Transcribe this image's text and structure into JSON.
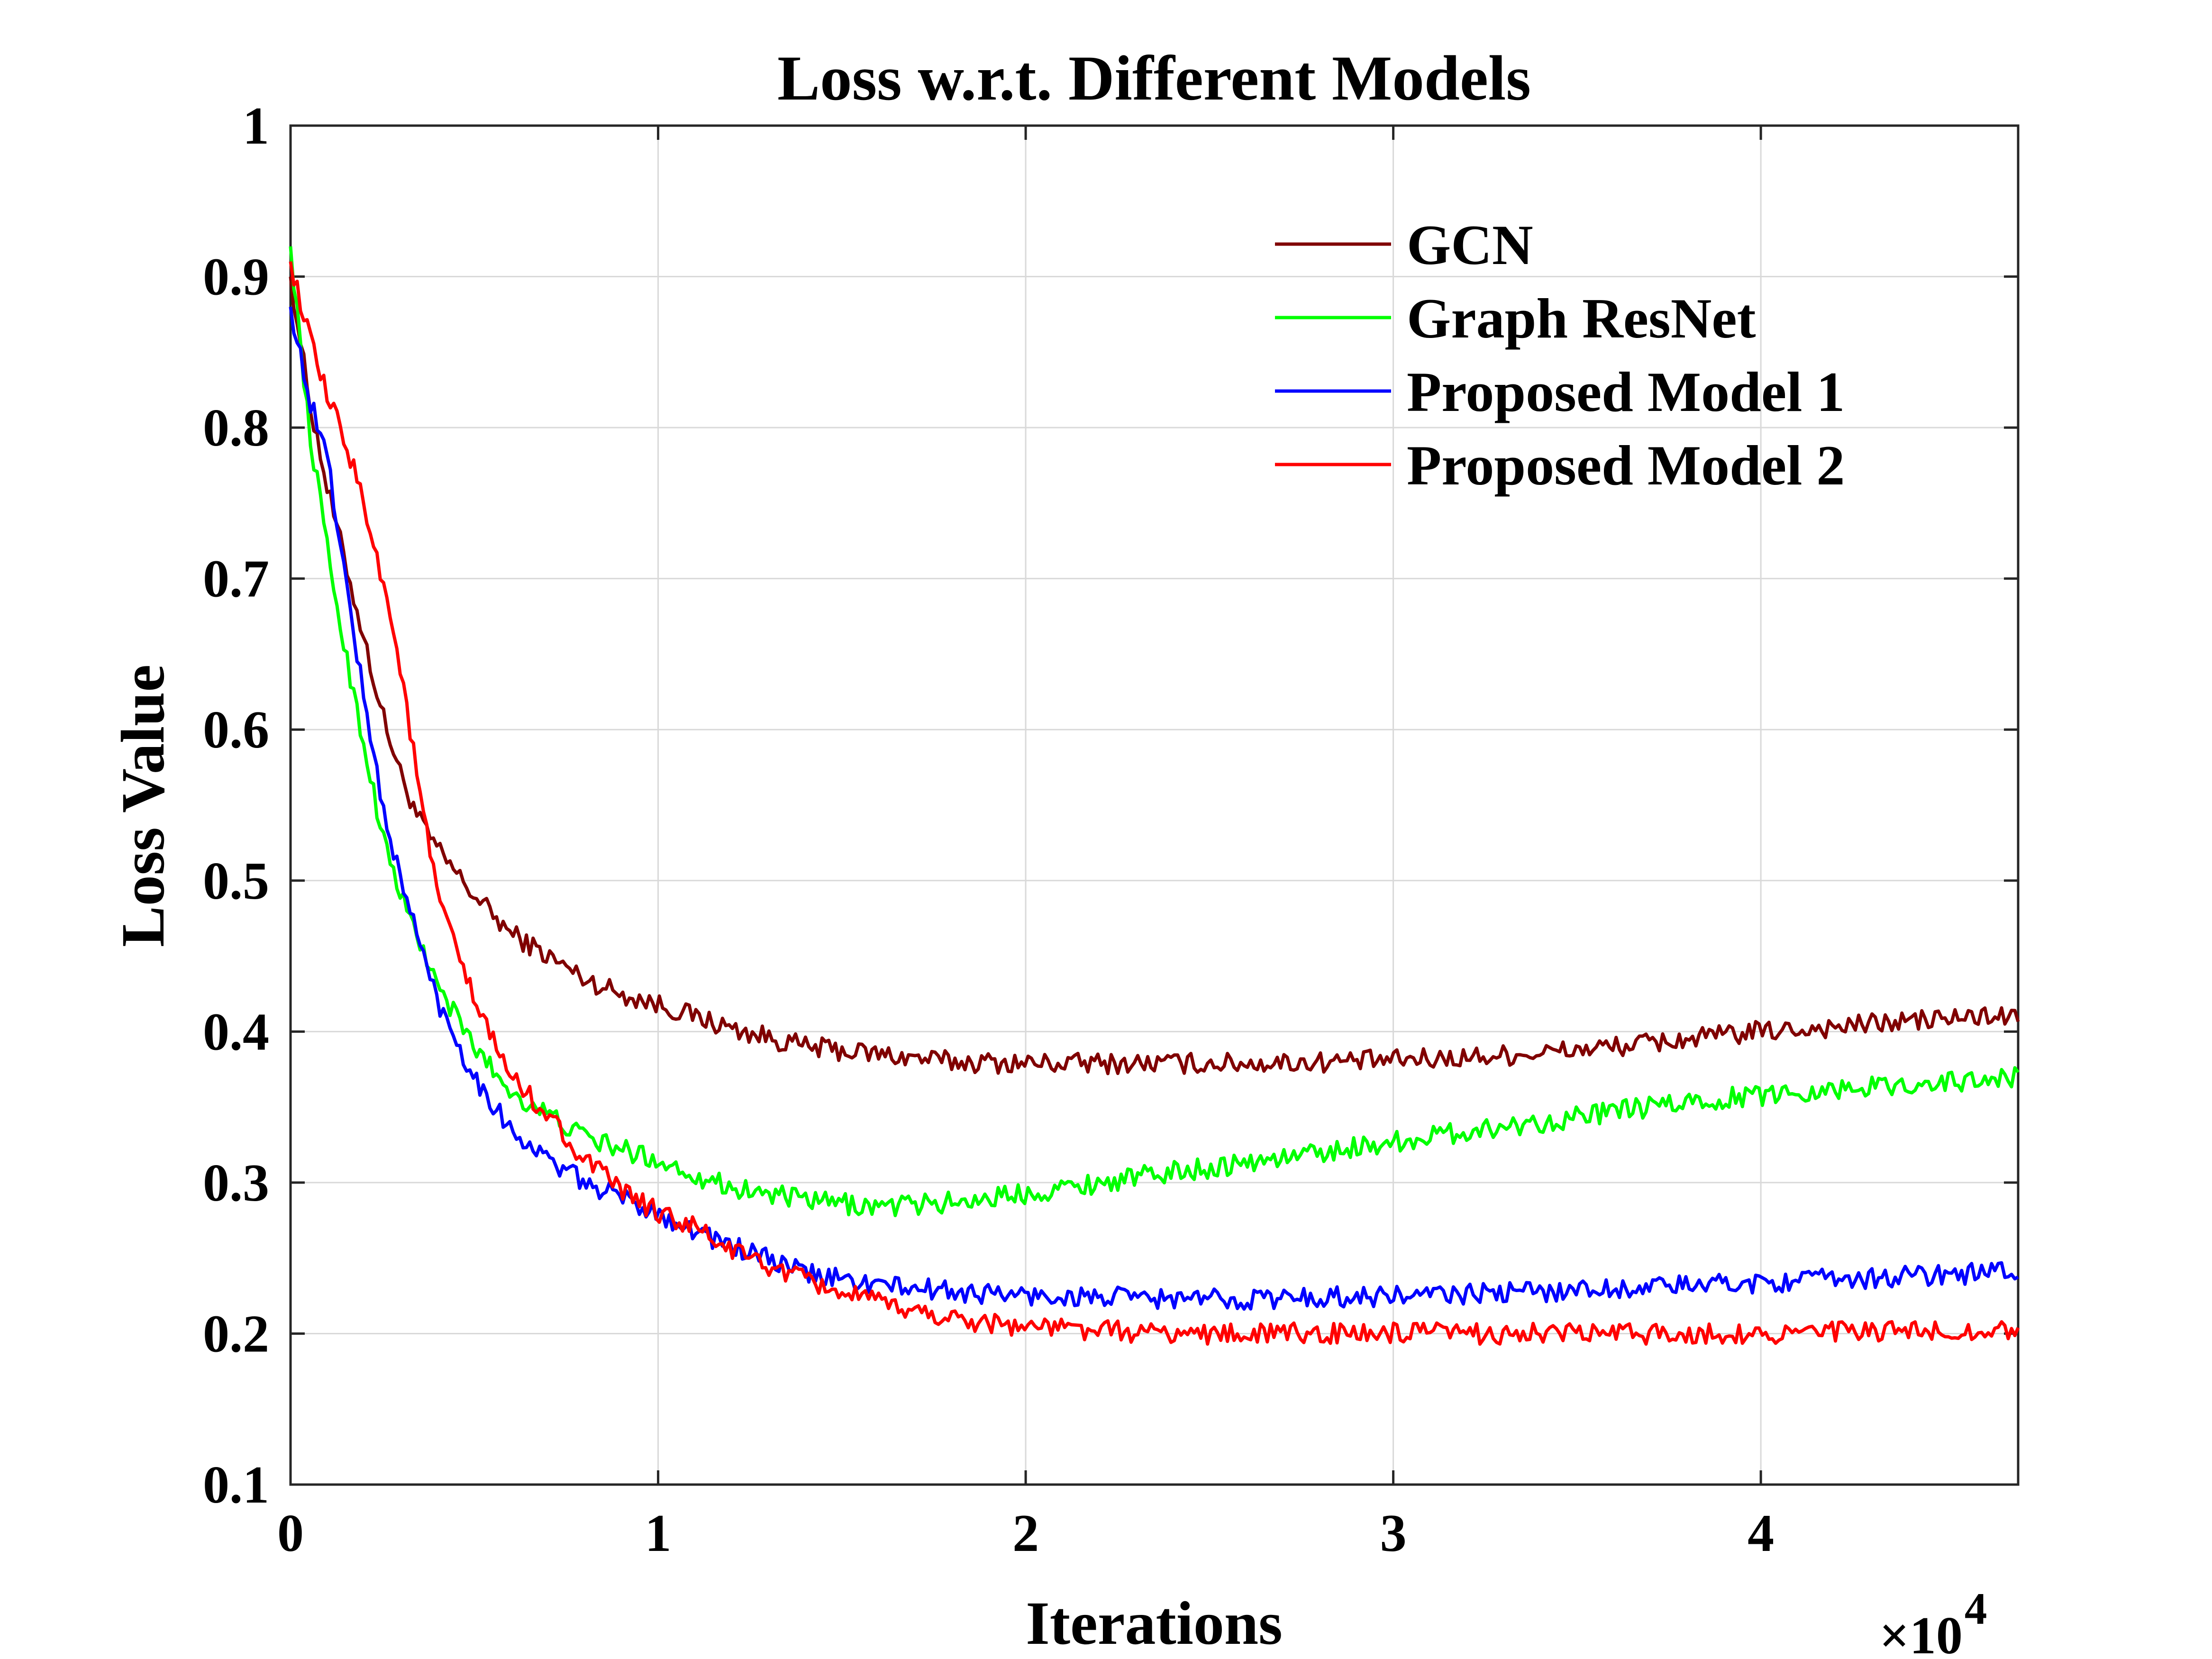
{
  "chart_data": {
    "type": "line",
    "title": "Loss w.r.t. Different Models",
    "xlabel": "Iterations",
    "ylabel": "Loss Value",
    "x_exponent": {
      "base": "×10",
      "power": "4"
    },
    "xlim": [
      0,
      47000
    ],
    "ylim": [
      0.1,
      1.0
    ],
    "xticks": [
      0,
      10000,
      20000,
      30000,
      40000
    ],
    "xtick_labels": [
      "0",
      "1",
      "2",
      "3",
      "4"
    ],
    "yticks": [
      0.1,
      0.2,
      0.3,
      0.4,
      0.5,
      0.6,
      0.7,
      0.8,
      0.9,
      1.0
    ],
    "ytick_labels": [
      "0.1",
      "0.2",
      "0.3",
      "0.4",
      "0.5",
      "0.6",
      "0.7",
      "0.8",
      "0.9",
      "1"
    ],
    "grid": true,
    "legend_position": "top-right",
    "series": [
      {
        "name": "GCN",
        "color": "#800000",
        "x": [
          0,
          500,
          1000,
          1500,
          2000,
          2500,
          3000,
          3500,
          4000,
          5000,
          6000,
          7000,
          8000,
          9000,
          10000,
          11000,
          12000,
          14000,
          16000,
          18000,
          20000,
          22000,
          24000,
          26000,
          28000,
          30000,
          32000,
          34000,
          36000,
          38000,
          40000,
          42000,
          44000,
          46000,
          47000
        ],
        "values": [
          0.9,
          0.82,
          0.76,
          0.71,
          0.66,
          0.61,
          0.57,
          0.54,
          0.52,
          0.49,
          0.465,
          0.45,
          0.435,
          0.425,
          0.418,
          0.41,
          0.402,
          0.39,
          0.385,
          0.38,
          0.379,
          0.379,
          0.379,
          0.379,
          0.38,
          0.381,
          0.383,
          0.386,
          0.39,
          0.395,
          0.4,
          0.403,
          0.407,
          0.41,
          0.41
        ]
      },
      {
        "name": "Graph ResNet",
        "color": "#00ff00",
        "x": [
          0,
          500,
          1000,
          1500,
          2000,
          2500,
          3000,
          3500,
          4000,
          5000,
          6000,
          7000,
          8000,
          9000,
          10000,
          11000,
          12000,
          14000,
          16000,
          18000,
          20000,
          22000,
          24000,
          26000,
          28000,
          30000,
          32000,
          34000,
          36000,
          38000,
          40000,
          42000,
          44000,
          46000,
          47000
        ],
        "values": [
          0.92,
          0.8,
          0.72,
          0.65,
          0.59,
          0.53,
          0.49,
          0.46,
          0.43,
          0.39,
          0.36,
          0.345,
          0.33,
          0.322,
          0.315,
          0.305,
          0.297,
          0.288,
          0.284,
          0.287,
          0.293,
          0.3,
          0.307,
          0.313,
          0.32,
          0.327,
          0.334,
          0.34,
          0.347,
          0.353,
          0.358,
          0.362,
          0.365,
          0.368,
          0.37
        ]
      },
      {
        "name": "Proposed Model 1",
        "color": "#0000ff",
        "x": [
          0,
          500,
          1000,
          1500,
          2000,
          2500,
          3000,
          3500,
          4000,
          5000,
          6000,
          7000,
          8000,
          9000,
          10000,
          11000,
          12000,
          14000,
          16000,
          18000,
          20000,
          22000,
          24000,
          26000,
          28000,
          30000,
          32000,
          34000,
          36000,
          38000,
          40000,
          42000,
          44000,
          46000,
          47000
        ],
        "values": [
          0.88,
          0.82,
          0.78,
          0.7,
          0.62,
          0.55,
          0.5,
          0.46,
          0.42,
          0.37,
          0.335,
          0.315,
          0.3,
          0.29,
          0.28,
          0.268,
          0.258,
          0.24,
          0.232,
          0.228,
          0.225,
          0.224,
          0.223,
          0.223,
          0.224,
          0.225,
          0.226,
          0.228,
          0.23,
          0.232,
          0.234,
          0.236,
          0.238,
          0.24,
          0.242
        ]
      },
      {
        "name": "Proposed Model 2",
        "color": "#ff0000",
        "x": [
          0,
          500,
          1000,
          1500,
          2000,
          2500,
          3000,
          3500,
          4000,
          5000,
          6000,
          7000,
          8000,
          9000,
          10000,
          11000,
          12000,
          14000,
          16000,
          18000,
          20000,
          22000,
          24000,
          26000,
          28000,
          30000,
          32000,
          34000,
          36000,
          38000,
          40000,
          42000,
          44000,
          46000,
          47000
        ],
        "values": [
          0.91,
          0.86,
          0.82,
          0.79,
          0.75,
          0.7,
          0.64,
          0.56,
          0.49,
          0.42,
          0.37,
          0.345,
          0.315,
          0.295,
          0.28,
          0.27,
          0.255,
          0.235,
          0.22,
          0.21,
          0.205,
          0.202,
          0.2,
          0.2,
          0.2,
          0.2,
          0.2,
          0.2,
          0.2,
          0.2,
          0.2,
          0.201,
          0.201,
          0.202,
          0.202
        ]
      }
    ]
  }
}
